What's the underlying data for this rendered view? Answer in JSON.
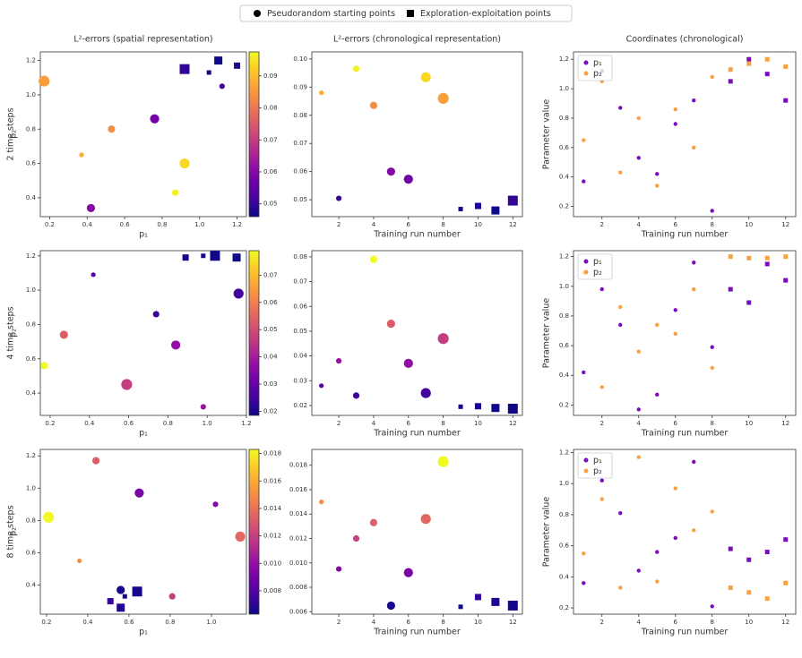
{
  "legend": {
    "loc": "upper center",
    "entries": [
      {
        "label": "Pseudorandom starting points",
        "marker": "circle"
      },
      {
        "label": "Exploration-exploitation points",
        "marker": "square"
      }
    ]
  },
  "column_titles": [
    "L²-errors (spatial representation)",
    "L²-errors (chronological representation)",
    "Coordinates (chronological)"
  ],
  "chart_data": [
    {
      "type": "scatter",
      "row_label": "2 time steps",
      "colormap": "plasma",
      "series": [
        {
          "marker": "circle",
          "runs": [
            1,
            2,
            3,
            4,
            5,
            6,
            7,
            8
          ],
          "p1": [
            0.37,
            1.12,
            0.87,
            0.53,
            0.42,
            0.76,
            0.92,
            0.17
          ],
          "p2": [
            0.65,
            1.05,
            0.43,
            0.8,
            0.34,
            0.86,
            0.6,
            1.08
          ],
          "error": [
            0.088,
            0.0505,
            0.0965,
            0.0835,
            0.06,
            0.0573,
            0.0935,
            0.086
          ]
        },
        {
          "marker": "square",
          "runs": [
            9,
            10,
            11,
            12
          ],
          "p1": [
            1.05,
            1.2,
            1.1,
            0.92
          ],
          "p2": [
            1.13,
            1.17,
            1.2,
            1.15
          ],
          "error": [
            0.0467,
            0.0478,
            0.0462,
            0.0497
          ]
        }
      ],
      "spatial": {
        "xlabel": "p₁",
        "ylabel": "p₂",
        "xlim": [
          0.15,
          1.25
        ],
        "xticks": [
          0.2,
          0.4,
          0.6,
          0.8,
          {
            "value": 1,
            "label": "1.0"
          },
          1.2
        ],
        "ylim": [
          0.29,
          1.25
        ],
        "yticks": [
          0.4,
          0.6,
          0.8,
          {
            "value": 1,
            "label": "1.0"
          },
          1.2
        ],
        "colorbar": {
          "lim": [
            0.046,
            0.0975
          ],
          "ticks": [
            0.05,
            0.06,
            0.07,
            0.08,
            0.09
          ]
        }
      },
      "chronological": {
        "xlabel": "Training run number",
        "xlim": [
          0.45,
          12.55
        ],
        "xticks": [
          2,
          4,
          6,
          8,
          10,
          12
        ],
        "ylim": [
          0.044,
          0.1025
        ],
        "yticks": [
          0.05,
          0.06,
          0.07,
          0.08,
          0.09,
          {
            "value": 0.1,
            "label": "0.10"
          }
        ]
      },
      "coordinates": {
        "xlabel": "Training run number",
        "ylabel": "Parameter value",
        "xlim": [
          0.45,
          12.55
        ],
        "xticks": [
          2,
          4,
          6,
          8,
          10,
          12
        ],
        "ylim": [
          0.13,
          1.25
        ],
        "yticks": [
          0.2,
          0.4,
          0.6,
          0.8,
          {
            "value": 1,
            "label": "1.0"
          },
          1.2
        ],
        "legend": {
          "loc": "upper left",
          "entries": [
            {
              "label": "p₁",
              "color": "#7a0bbf"
            },
            {
              "label": "p₂",
              "color": "#f9a03f"
            }
          ]
        }
      }
    },
    {
      "type": "scatter",
      "row_label": "4 time steps",
      "colormap": "plasma",
      "series": [
        {
          "marker": "circle",
          "runs": [
            1,
            2,
            3,
            4,
            5,
            6,
            7,
            8
          ],
          "p1": [
            0.42,
            0.98,
            0.74,
            0.17,
            0.27,
            0.84,
            1.16,
            0.59
          ],
          "p2": [
            1.09,
            0.32,
            0.86,
            0.56,
            0.74,
            0.68,
            0.98,
            0.45
          ],
          "error": [
            0.028,
            0.038,
            0.024,
            0.079,
            0.053,
            0.037,
            0.025,
            0.047
          ]
        },
        {
          "marker": "square",
          "runs": [
            9,
            10,
            11,
            12
          ],
          "p1": [
            0.98,
            0.89,
            1.15,
            1.04
          ],
          "p2": [
            1.2,
            1.19,
            1.19,
            1.2
          ],
          "error": [
            0.0195,
            0.0197,
            0.019,
            0.0187
          ]
        }
      ],
      "spatial": {
        "xlabel": "p₁",
        "ylabel": "p₂",
        "xlim": [
          0.15,
          1.2
        ],
        "xticks": [
          0.2,
          0.4,
          0.6,
          0.8,
          {
            "value": 1,
            "label": "1.0"
          },
          1.2
        ],
        "ylim": [
          0.27,
          1.23
        ],
        "yticks": [
          0.4,
          0.6,
          0.8,
          {
            "value": 1,
            "label": "1.0"
          },
          1.2
        ],
        "colorbar": {
          "lim": [
            0.0185,
            0.079
          ],
          "ticks": [
            0.02,
            0.03,
            0.04,
            0.05,
            0.06,
            0.07
          ]
        }
      },
      "chronological": {
        "xlabel": "Training run number",
        "xlim": [
          0.45,
          12.55
        ],
        "xticks": [
          2,
          4,
          6,
          8,
          10,
          12
        ],
        "ylim": [
          0.016,
          0.0825
        ],
        "yticks": [
          0.02,
          0.03,
          0.04,
          0.05,
          0.06,
          0.07,
          0.08
        ]
      },
      "coordinates": {
        "xlabel": "Training run number",
        "ylabel": "Parameter value",
        "xlim": [
          0.45,
          12.55
        ],
        "xticks": [
          2,
          4,
          6,
          8,
          10,
          12
        ],
        "ylim": [
          0.13,
          1.24
        ],
        "yticks": [
          0.2,
          0.4,
          0.6,
          0.8,
          {
            "value": 1,
            "label": "1.0"
          },
          1.2
        ],
        "legend": {
          "loc": "upper left",
          "entries": [
            {
              "label": "p₁",
              "color": "#7a0bbf"
            },
            {
              "label": "p₂",
              "color": "#f9a03f"
            }
          ]
        }
      }
    },
    {
      "type": "scatter",
      "row_label": "8 time steps",
      "colormap": "plasma",
      "series": [
        {
          "marker": "circle",
          "runs": [
            1,
            2,
            3,
            4,
            5,
            6,
            7,
            8
          ],
          "p1": [
            0.36,
            1.02,
            0.81,
            0.44,
            0.56,
            0.65,
            1.14,
            0.21
          ],
          "p2": [
            0.55,
            0.9,
            0.33,
            1.17,
            0.37,
            0.97,
            0.7,
            0.82
          ],
          "error": [
            0.015,
            0.0095,
            0.012,
            0.0133,
            0.0065,
            0.0092,
            0.0136,
            0.0183
          ]
        },
        {
          "marker": "square",
          "runs": [
            9,
            10,
            11,
            12
          ],
          "p1": [
            0.58,
            0.51,
            0.56,
            0.64
          ],
          "p2": [
            0.33,
            0.3,
            0.26,
            0.36
          ],
          "error": [
            0.0064,
            0.0072,
            0.0068,
            0.0065
          ]
        }
      ],
      "spatial": {
        "xlabel": "p₁",
        "ylabel": "p₂",
        "xlim": [
          0.17,
          1.17
        ],
        "xticks": [
          0.2,
          0.4,
          0.6,
          0.8,
          {
            "value": 1,
            "label": "1.0"
          }
        ],
        "ylim": [
          0.22,
          1.24
        ],
        "yticks": [
          0.4,
          0.6,
          0.8,
          {
            "value": 1,
            "label": "1.0"
          },
          1.2
        ],
        "colorbar": {
          "lim": [
            0.0063,
            0.0183
          ],
          "ticks": [
            0.008,
            {
              "value": 0.01,
              "label": "0.010"
            },
            0.012,
            0.014,
            0.016,
            0.018
          ]
        }
      },
      "chronological": {
        "xlabel": "Training run number",
        "xlim": [
          0.45,
          12.55
        ],
        "xticks": [
          2,
          4,
          6,
          8,
          10,
          12
        ],
        "ylim": [
          0.0058,
          0.0193
        ],
        "yticks": [
          0.006,
          0.008,
          {
            "value": 0.01,
            "label": "0.010"
          },
          0.012,
          0.014,
          0.016,
          0.018
        ]
      },
      "coordinates": {
        "xlabel": "Training run number",
        "ylabel": "Parameter value",
        "xlim": [
          0.45,
          12.55
        ],
        "xticks": [
          2,
          4,
          6,
          8,
          10,
          12
        ],
        "ylim": [
          0.16,
          1.22
        ],
        "yticks": [
          0.2,
          0.4,
          0.6,
          0.8,
          {
            "value": 1,
            "label": "1.0"
          },
          1.2
        ],
        "legend": {
          "loc": "upper left",
          "entries": [
            {
              "label": "p₁",
              "color": "#7a0bbf"
            },
            {
              "label": "p₂",
              "color": "#f9a03f"
            }
          ]
        }
      }
    }
  ]
}
